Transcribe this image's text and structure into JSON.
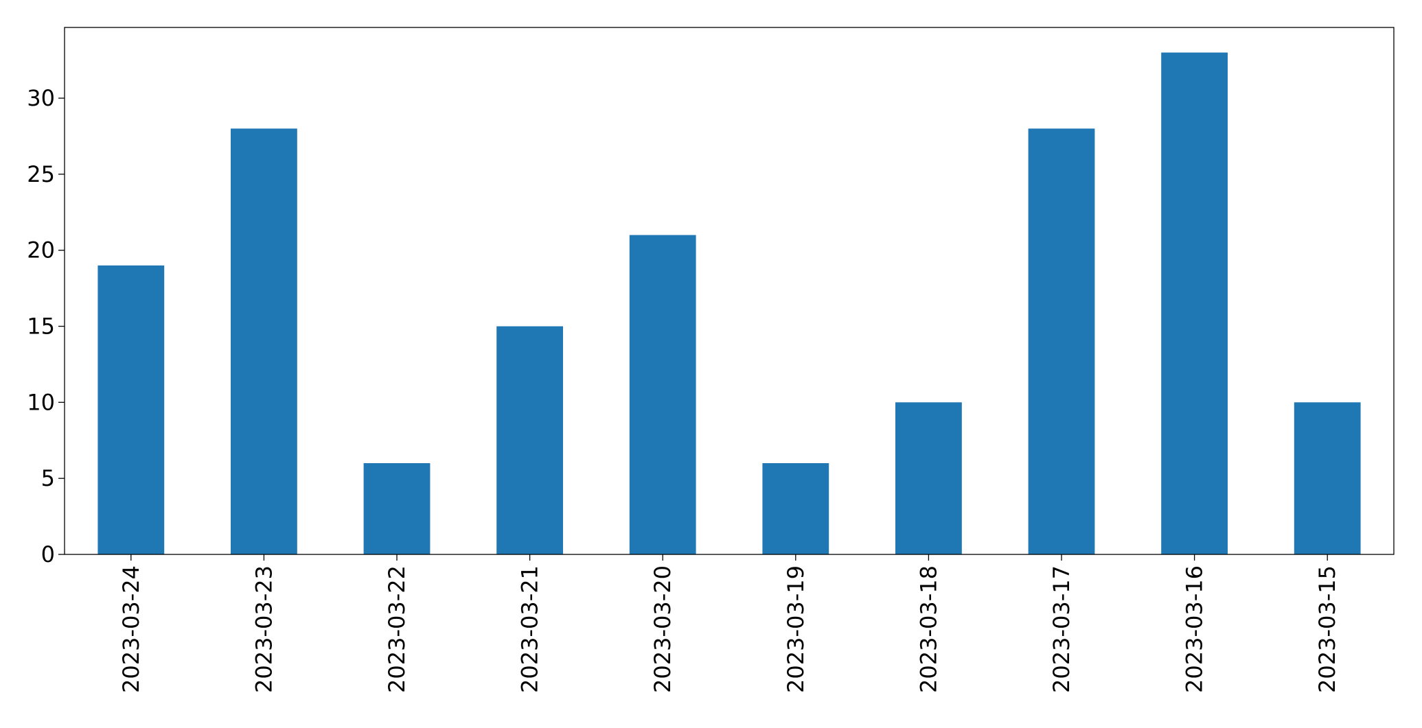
{
  "chart_data": {
    "type": "bar",
    "categories": [
      "2023-03-24",
      "2023-03-23",
      "2023-03-22",
      "2023-03-21",
      "2023-03-20",
      "2023-03-19",
      "2023-03-18",
      "2023-03-17",
      "2023-03-16",
      "2023-03-15"
    ],
    "values": [
      19,
      28,
      6,
      15,
      21,
      6,
      10,
      28,
      33,
      10
    ],
    "color": "#1f77b4",
    "ylim": [
      0,
      34.65
    ],
    "yticks": [
      0,
      5,
      10,
      15,
      20,
      25,
      30
    ],
    "grid": false
  }
}
